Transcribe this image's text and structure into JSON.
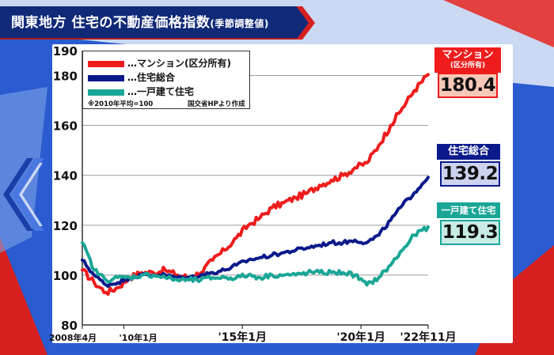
{
  "title_main": "関東地方 住宅の不動産価格指数",
  "title_suffix": "(季節調整値)",
  "legend": [
    {
      "label": "…マンション(区分所有)",
      "color": "#ee1c1c"
    },
    {
      "label": "…住宅総合",
      "color": "#0a1a8a"
    },
    {
      "label": "…一戸建て住宅",
      "color": "#1aa696"
    }
  ],
  "note_base": "※2010年平均=100",
  "note_source": "国交省HPより作成",
  "callouts": [
    {
      "title": "マンション",
      "subtitle": "(区分所有)",
      "value": "180.4",
      "title_bg": "#ee1c1c",
      "value_bg": "#f6c8b8",
      "border": "#ee1c1c"
    },
    {
      "title": "住宅総合",
      "subtitle": "",
      "value": "139.2",
      "title_bg": "#0a1a8a",
      "value_bg": "#cdd3ee",
      "border": "#0a1a8a"
    },
    {
      "title": "一戸建て住宅",
      "subtitle": "",
      "value": "119.3",
      "title_bg": "#1aa696",
      "value_bg": "#c7ece6",
      "border": "#1aa696"
    }
  ],
  "chart_data": {
    "type": "line",
    "title": "関東地方 住宅の不動産価格指数(季節調整値)",
    "ylim": [
      80,
      190
    ],
    "yticks": [
      80,
      100,
      120,
      140,
      160,
      180,
      190
    ],
    "xlim": [
      "2008-04",
      "2022-11"
    ],
    "x_tick_labels": [
      {
        "label": "2008年4月",
        "x": "2008-04"
      },
      {
        "label": "'10年1月",
        "x": "2010-01"
      },
      {
        "label": "'15年1月",
        "x": "2015-01"
      },
      {
        "label": "'20年1月",
        "x": "2020-01"
      },
      {
        "label": "'22年11月",
        "x": "2022-11"
      }
    ],
    "grid": true,
    "legend_position": "top-left",
    "series": [
      {
        "name": "マンション(区分所有)",
        "color": "#ee1c1c",
        "x": [
          "2008-04",
          "2008-10",
          "2009-04",
          "2009-10",
          "2010-04",
          "2010-10",
          "2011-04",
          "2011-10",
          "2012-04",
          "2012-10",
          "2013-04",
          "2013-10",
          "2014-04",
          "2014-10",
          "2015-04",
          "2015-10",
          "2016-04",
          "2016-10",
          "2017-04",
          "2017-10",
          "2018-04",
          "2018-10",
          "2019-04",
          "2019-10",
          "2020-04",
          "2020-10",
          "2021-04",
          "2021-10",
          "2022-04",
          "2022-11"
        ],
        "values": [
          102,
          97,
          93,
          95,
          99,
          101,
          101,
          102,
          100,
          99,
          101,
          106,
          110,
          115,
          120,
          123,
          127,
          129,
          131,
          133,
          136,
          138,
          140,
          143,
          145,
          152,
          160,
          167,
          174,
          180.4
        ]
      },
      {
        "name": "住宅総合",
        "color": "#0a1a8a",
        "x": [
          "2008-04",
          "2008-10",
          "2009-04",
          "2009-10",
          "2010-04",
          "2010-10",
          "2011-04",
          "2011-10",
          "2012-04",
          "2012-10",
          "2013-04",
          "2013-10",
          "2014-04",
          "2014-10",
          "2015-04",
          "2015-10",
          "2016-04",
          "2016-10",
          "2017-04",
          "2017-10",
          "2018-04",
          "2018-10",
          "2019-04",
          "2019-10",
          "2020-04",
          "2020-10",
          "2021-04",
          "2021-10",
          "2022-04",
          "2022-11"
        ],
        "values": [
          106,
          100,
          96,
          97,
          99,
          100,
          100,
          100,
          99,
          99,
          100,
          101,
          102,
          104,
          106,
          107,
          108,
          109,
          110,
          111,
          112,
          113,
          113,
          114,
          113,
          116,
          122,
          128,
          133,
          139.2
        ]
      },
      {
        "name": "一戸建て住宅",
        "color": "#1aa696",
        "x": [
          "2008-04",
          "2008-10",
          "2009-04",
          "2009-10",
          "2010-04",
          "2010-10",
          "2011-04",
          "2011-10",
          "2012-04",
          "2012-10",
          "2013-04",
          "2013-10",
          "2014-04",
          "2014-10",
          "2015-04",
          "2015-10",
          "2016-04",
          "2016-10",
          "2017-04",
          "2017-10",
          "2018-04",
          "2018-10",
          "2019-04",
          "2019-10",
          "2020-04",
          "2020-10",
          "2021-04",
          "2021-10",
          "2022-04",
          "2022-11"
        ],
        "values": [
          113,
          102,
          98,
          99,
          99,
          100,
          100,
          99,
          98,
          98,
          98,
          99,
          99,
          99,
          100,
          99,
          100,
          100,
          100,
          101,
          101,
          101,
          101,
          100,
          96,
          99,
          104,
          110,
          116,
          119.3
        ]
      }
    ]
  }
}
